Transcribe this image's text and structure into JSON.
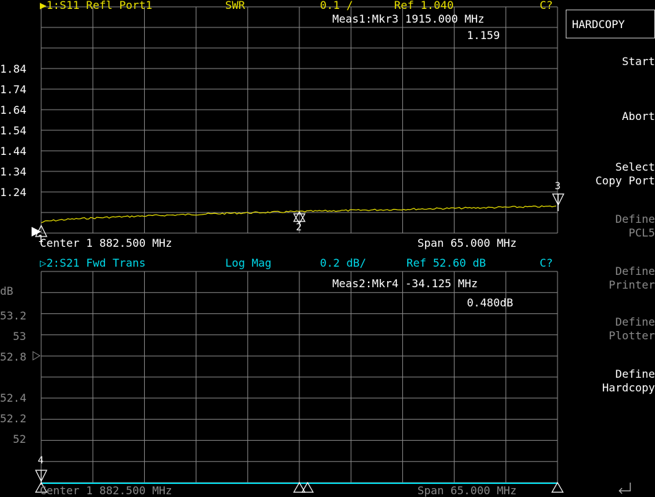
{
  "trace1": {
    "title": "▶1:S11 Refl Port1",
    "format": "SWR",
    "scale": "0.1 /",
    "ref": "Ref  1.040",
    "cal": "C?",
    "marker_readout": "Meas1:Mkr3 1915.000 MHz",
    "marker_value": "1.159",
    "y_labels": [
      "1.84",
      "1.74",
      "1.64",
      "1.54",
      "1.44",
      "1.34",
      "1.24"
    ],
    "center": "Center 1 882.500 MHz",
    "span": "Span 65.000 MHz",
    "markers": [
      "3",
      "2",
      "1"
    ]
  },
  "trace2": {
    "title": "▷2:S21 Fwd Trans",
    "format": "Log Mag",
    "scale": "0.2 dB/",
    "ref": "Ref  52.60 dB",
    "cal": "C?",
    "marker_readout": "Meas2:Mkr4  -34.125 MHz",
    "marker_value": "0.480dB",
    "unit": "dB",
    "y_labels": [
      "53.2",
      "53",
      "52.8",
      "52.4",
      "52.2",
      "52"
    ],
    "center": "Center 1 882.500 MHz",
    "span": "Span 65.000 MHz",
    "markers": [
      "4"
    ]
  },
  "softkeys": {
    "title": "HARDCOPY",
    "start": "Start",
    "abort": "Abort",
    "select_1": "Select",
    "select_2": "Copy Port",
    "pcl_1": "Define",
    "pcl_2": "PCL5",
    "printer_1": "Define",
    "printer_2": "Printer",
    "plotter_1": "Define",
    "plotter_2": "Plotter",
    "hardcopy_1": "Define",
    "hardcopy_2": "Hardcopy",
    "return_icon": "return-arrow-icon"
  },
  "colors": {
    "trace1": "#e8e000",
    "trace2": "#00d8e8",
    "grid": "#8a8a8a",
    "disabled": "#8a8a8a"
  }
}
